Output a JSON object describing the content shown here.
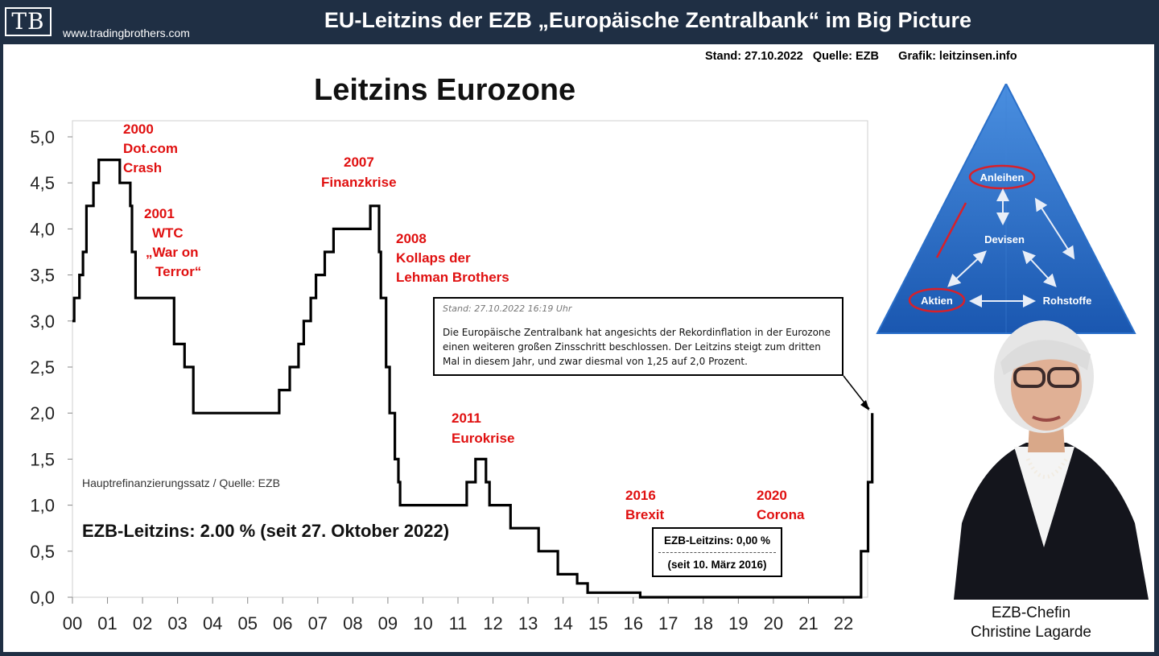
{
  "header": {
    "logo": "TB",
    "site": "www.tradingbrothers.com",
    "title": "EU-Leitzins der EZB „Europäische Zentralbank“ im Big Picture"
  },
  "meta": {
    "stand": "Stand: 27.10.2022",
    "quelle": "Quelle: EZB",
    "grafik": "Grafik: leitzinsen.info"
  },
  "chart_data": {
    "type": "line",
    "title": "Leitzins Eurozone",
    "source_label": "Hauptrefinanzierungssatz / Quelle: EZB",
    "current_rate_label": "EZB-Leitzins: 2.00 % (seit 27. Oktober 2022)",
    "xlabel": "",
    "ylabel": "",
    "xlim": [
      2000,
      2022.7
    ],
    "ylim": [
      0,
      5
    ],
    "grid": false,
    "x_tick_labels": [
      "00",
      "01",
      "02",
      "03",
      "04",
      "05",
      "06",
      "07",
      "08",
      "09",
      "10",
      "11",
      "12",
      "13",
      "14",
      "15",
      "16",
      "17",
      "18",
      "19",
      "20",
      "21",
      "22"
    ],
    "y_tick_labels": [
      "0,0",
      "0,5",
      "1,0",
      "1,5",
      "2,0",
      "2,5",
      "3,0",
      "3,5",
      "4,0",
      "4,5",
      "5,0"
    ],
    "series": [
      {
        "values": [
          [
            2000.0,
            3.0
          ],
          [
            2000.05,
            3.25
          ],
          [
            2000.2,
            3.5
          ],
          [
            2000.3,
            3.75
          ],
          [
            2000.4,
            4.25
          ],
          [
            2000.6,
            4.5
          ],
          [
            2000.75,
            4.75
          ],
          [
            2001.35,
            4.5
          ],
          [
            2001.65,
            4.25
          ],
          [
            2001.7,
            3.75
          ],
          [
            2001.8,
            3.25
          ],
          [
            2002.9,
            2.75
          ],
          [
            2003.2,
            2.5
          ],
          [
            2003.45,
            2.0
          ],
          [
            2005.9,
            2.25
          ],
          [
            2006.2,
            2.5
          ],
          [
            2006.45,
            2.75
          ],
          [
            2006.6,
            3.0
          ],
          [
            2006.8,
            3.25
          ],
          [
            2006.95,
            3.5
          ],
          [
            2007.2,
            3.75
          ],
          [
            2007.45,
            4.0
          ],
          [
            2008.5,
            4.25
          ],
          [
            2008.75,
            3.75
          ],
          [
            2008.8,
            3.25
          ],
          [
            2008.95,
            2.5
          ],
          [
            2009.05,
            2.0
          ],
          [
            2009.2,
            1.5
          ],
          [
            2009.3,
            1.25
          ],
          [
            2009.35,
            1.0
          ],
          [
            2011.25,
            1.25
          ],
          [
            2011.5,
            1.5
          ],
          [
            2011.8,
            1.25
          ],
          [
            2011.9,
            1.0
          ],
          [
            2012.5,
            0.75
          ],
          [
            2013.3,
            0.5
          ],
          [
            2013.85,
            0.25
          ],
          [
            2014.4,
            0.15
          ],
          [
            2014.7,
            0.05
          ],
          [
            2016.2,
            0.0
          ],
          [
            2022.5,
            0.5
          ],
          [
            2022.7,
            1.25
          ],
          [
            2022.82,
            2.0
          ]
        ]
      }
    ],
    "annotations": [
      {
        "lines": [
          "2000",
          "Dot.com",
          "Crash"
        ]
      },
      {
        "lines": [
          "2001",
          "WTC",
          "„War on",
          "Terror“"
        ]
      },
      {
        "lines": [
          "2007",
          "Finanzkrise"
        ]
      },
      {
        "lines": [
          "2008",
          "Kollaps der",
          "Lehman Brothers"
        ]
      },
      {
        "lines": [
          "2011",
          "Eurokrise"
        ]
      },
      {
        "lines": [
          "2016",
          "Brexit"
        ]
      },
      {
        "lines": [
          "2020",
          "Corona"
        ]
      }
    ]
  },
  "news": {
    "stamp": "Stand: 27.10.2022 16:19 Uhr",
    "text": "Die Europäische Zentralbank hat angesichts der Rekordinflation in der Eurozone einen weiteren großen Zinsschritt beschlossen. Der Leitzins steigt zum dritten Mal in diesem Jahr, und zwar diesmal von 1,25 auf 2,0 Prozent."
  },
  "box_note": {
    "line1": "EZB-Leitzins: 0,00 %",
    "line2": "(seit 10. März 2016)"
  },
  "pyramid": {
    "top": "Anleihen",
    "center": "Devisen",
    "left": "Aktien",
    "right": "Rohstoffe"
  },
  "caption": {
    "line1": "EZB-Chefin",
    "line2": "Christine Lagarde"
  },
  "colors": {
    "frame": "#1f2f44",
    "annotation_red": "#e01010",
    "pyramid_blue": "#2a6fc9"
  }
}
